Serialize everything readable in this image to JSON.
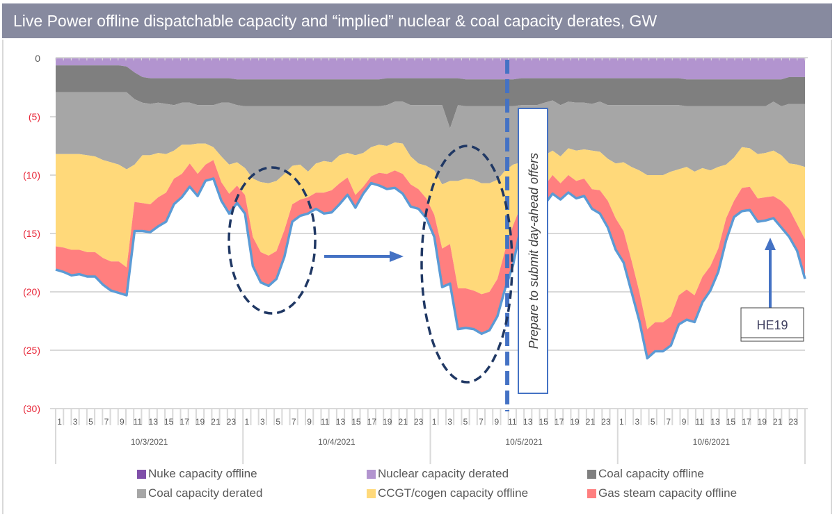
{
  "header": {
    "title": "Live Power offline dispatchable capacity and “implied” nuclear & coal capacity derates, GW"
  },
  "chart_data": {
    "type": "area",
    "stacked": true,
    "title": "Live Power offline dispatchable capacity and “implied” nuclear & coal capacity derates, GW",
    "xlabel": "",
    "ylabel": "GW",
    "ylim": [
      -30,
      0
    ],
    "yticks": [
      0,
      -5,
      -10,
      -15,
      -20,
      -25,
      -30
    ],
    "ytick_labels": [
      "0",
      "(5)",
      "(10)",
      "(15)",
      "(20)",
      "(25)",
      "(30)"
    ],
    "grid": true,
    "legend_position": "bottom",
    "hours_per_day": 24,
    "hour_tick_labels": [
      "1",
      "3",
      "5",
      "7",
      "9",
      "11",
      "13",
      "15",
      "17",
      "19",
      "21",
      "23"
    ],
    "days": [
      "10/3/2021",
      "10/4/2021",
      "10/5/2021",
      "10/6/2021"
    ],
    "series": [
      {
        "name": "Nuke capacity offline",
        "color": "#7f4fa9",
        "values": [
          0,
          0,
          0,
          0,
          0,
          0,
          0,
          0,
          0,
          0,
          0,
          0,
          0,
          0,
          0,
          0,
          0,
          0,
          0,
          0,
          0,
          0,
          0,
          0,
          0,
          0,
          0,
          0,
          0,
          0,
          0,
          0,
          0,
          0,
          0,
          0,
          0,
          0,
          0,
          0,
          0,
          0,
          0,
          0,
          0,
          0,
          0,
          0,
          0,
          0,
          0,
          0,
          0,
          0,
          0,
          0,
          0,
          0,
          0,
          0,
          0,
          0,
          0,
          0,
          0,
          0,
          0,
          0,
          0,
          0,
          0,
          0,
          0,
          0,
          0,
          0,
          0,
          0,
          0,
          0,
          0,
          0,
          0,
          0,
          0,
          0,
          0,
          0,
          0,
          0,
          0,
          0,
          0,
          0,
          0,
          0
        ]
      },
      {
        "name": "Nuclear capacity derated",
        "color": "#b294cf",
        "values": [
          0.6,
          0.6,
          0.6,
          0.6,
          0.6,
          0.6,
          0.6,
          0.6,
          0.6,
          0.7,
          1.2,
          1.6,
          1.7,
          1.7,
          1.7,
          1.7,
          1.7,
          1.7,
          1.7,
          1.7,
          1.7,
          1.7,
          1.7,
          1.8,
          1.8,
          1.8,
          1.8,
          1.8,
          1.8,
          1.8,
          1.8,
          1.8,
          1.8,
          1.8,
          1.8,
          1.8,
          1.8,
          1.8,
          1.8,
          1.8,
          1.8,
          1.8,
          1.7,
          1.7,
          1.7,
          1.7,
          1.7,
          1.7,
          1.7,
          1.7,
          1.7,
          1.7,
          1.8,
          1.8,
          1.8,
          1.8,
          1.8,
          1.8,
          1.8,
          1.7,
          1.7,
          1.7,
          1.7,
          1.7,
          1.7,
          1.7,
          1.7,
          1.7,
          1.7,
          1.7,
          1.7,
          1.7,
          1.7,
          1.7,
          1.7,
          1.7,
          1.7,
          1.7,
          1.7,
          1.7,
          1.8,
          1.8,
          1.8,
          1.8,
          1.8,
          1.8,
          1.8,
          1.8,
          1.8,
          1.8,
          1.8,
          1.8,
          1.8,
          1.6,
          1.6,
          1.6
        ]
      },
      {
        "name": "Coal capacity offline",
        "color": "#7f7f7f",
        "values": [
          2.3,
          2.3,
          2.3,
          2.3,
          2.3,
          2.3,
          2.3,
          2.3,
          2.3,
          2.2,
          2.3,
          2.2,
          2.2,
          2.1,
          2.2,
          2.3,
          2.1,
          2.1,
          2.3,
          2.3,
          2.3,
          2.1,
          2.1,
          2.2,
          2.3,
          2.3,
          2.3,
          2.3,
          2.3,
          2.3,
          2.3,
          2.3,
          2.3,
          2.3,
          2.3,
          2.3,
          2.3,
          2.3,
          2.3,
          2.3,
          2.3,
          2.3,
          2.3,
          2.0,
          2.0,
          2.3,
          2.3,
          2.3,
          2.3,
          2.3,
          4.3,
          2.3,
          2.3,
          2.3,
          2.3,
          2.3,
          2.3,
          2.3,
          2.3,
          2.3,
          2.3,
          2.3,
          2.1,
          1.9,
          2.3,
          2.0,
          2.1,
          2.1,
          2.2,
          2.0,
          2.3,
          2.3,
          2.3,
          2.3,
          2.3,
          2.3,
          2.3,
          2.3,
          2.3,
          2.3,
          2.3,
          2.3,
          2.3,
          2.3,
          2.3,
          2.3,
          2.3,
          2.3,
          2.3,
          2.3,
          2.3,
          1.9,
          2.3,
          2.3,
          2.3,
          2.3
        ]
      },
      {
        "name": "Coal capacity derated",
        "color": "#a6a6a6",
        "values": [
          5.3,
          5.3,
          5.3,
          5.3,
          5.4,
          5.5,
          5.8,
          6.0,
          6.2,
          6.6,
          5.6,
          4.5,
          4.4,
          4.3,
          4.3,
          3.9,
          3.6,
          3.6,
          3.3,
          3.3,
          3.6,
          4.6,
          5.3,
          4.9,
          5.3,
          6.2,
          6.5,
          6.6,
          6.4,
          5.8,
          5.1,
          5.0,
          5.6,
          4.9,
          4.7,
          4.8,
          4.2,
          4.0,
          4.2,
          4.0,
          3.5,
          3.3,
          3.5,
          3.5,
          3.6,
          4.4,
          5.0,
          5.2,
          5.6,
          6.8,
          4.5,
          6.5,
          6.2,
          6.3,
          6.6,
          6.6,
          6.3,
          5.5,
          5.0,
          4.9,
          4.9,
          4.9,
          4.5,
          4.3,
          4.4,
          4.0,
          4.1,
          4.0,
          4.0,
          4.3,
          4.6,
          5.0,
          4.9,
          5.3,
          5.6,
          6.0,
          6.0,
          6.0,
          5.7,
          5.5,
          5.2,
          5.6,
          5.3,
          5.5,
          5.2,
          5.0,
          4.4,
          3.5,
          3.6,
          4.1,
          4.0,
          4.2,
          4.2,
          5.1,
          5.2,
          5.4
        ]
      },
      {
        "name": "CCGT/cogen capacity offline",
        "color": "#ffd97a",
        "values": [
          7.9,
          8.0,
          8.2,
          8.2,
          8.3,
          8.2,
          8.4,
          8.5,
          8.3,
          8.4,
          3.2,
          4.1,
          4.2,
          3.8,
          3.3,
          2.4,
          2.5,
          1.6,
          2.6,
          1.8,
          1.1,
          2.2,
          2.5,
          2.0,
          2.3,
          5.0,
          6.0,
          6.2,
          6.0,
          4.8,
          3.3,
          3.0,
          2.2,
          2.5,
          2.7,
          2.4,
          2.4,
          2.1,
          3.4,
          2.9,
          2.5,
          2.4,
          2.4,
          2.4,
          2.6,
          2.4,
          2.2,
          2.8,
          3.8,
          5.5,
          5.4,
          9.2,
          9.4,
          9.5,
          9.5,
          9.3,
          8.5,
          6.8,
          5.2,
          3.7,
          2.5,
          2.3,
          2.6,
          2.1,
          2.3,
          2.3,
          2.6,
          2.5,
          3.3,
          3.3,
          3.6,
          4.7,
          5.9,
          8.0,
          10.4,
          13.2,
          12.6,
          12.6,
          12.4,
          10.8,
          10.5,
          10.6,
          9.3,
          8.2,
          7.0,
          4.6,
          3.7,
          3.5,
          3.3,
          3.8,
          3.8,
          3.9,
          3.9,
          3.9,
          5.1,
          6.2
        ]
      },
      {
        "name": "Gas steam capacity offline",
        "color": "#ff7f7f",
        "values": [
          1.9,
          2.0,
          2.1,
          2.0,
          2.0,
          2.0,
          2.2,
          2.4,
          2.6,
          2.3,
          2.4,
          2.3,
          2.3,
          2.4,
          2.4,
          2.1,
          1.9,
          1.9,
          1.8,
          1.3,
          1.5,
          1.5,
          1.6,
          1.4,
          1.5,
          2.4,
          2.5,
          2.5,
          2.3,
          2.2,
          1.4,
          1.3,
          1.3,
          1.3,
          1.7,
          1.8,
          1.7,
          1.4,
          1.0,
          0.5,
          0.5,
          1.0,
          1.2,
          1.4,
          1.6,
          1.8,
          1.6,
          1.6,
          1.8,
          3.2,
          3.3,
          3.4,
          3.3,
          3.2,
          3.3,
          3.2,
          3.1,
          3.2,
          3.3,
          1.6,
          1.6,
          1.6,
          1.5,
          1.5,
          1.3,
          1.4,
          1.4,
          1.4,
          1.6,
          1.9,
          2.2,
          2.6,
          2.6,
          2.6,
          2.4,
          2.4,
          2.4,
          2.4,
          2.4,
          2.4,
          2.5,
          2.2,
          2.1,
          2.0,
          1.9,
          1.8,
          1.3,
          1.9,
          1.9,
          1.9,
          1.9,
          1.8,
          2.2,
          2.3,
          2.2,
          3.3
        ]
      }
    ],
    "boundary_line": {
      "name": "Total offline (outline)",
      "color": "#5b9bd5"
    },
    "annotations": [
      {
        "type": "vline",
        "label": "Prepare to submit day-ahead offers",
        "color": "#4472c4",
        "at": {
          "day": "10/5/2021",
          "hour": 10
        }
      },
      {
        "type": "ellipse",
        "label": "",
        "color": "#203864",
        "around": {
          "day": "10/4/2021",
          "hours": [
            1,
            9
          ]
        }
      },
      {
        "type": "ellipse",
        "label": "",
        "color": "#203864",
        "around": {
          "day": "10/5/2021",
          "hours": [
            1,
            9
          ]
        }
      },
      {
        "type": "arrow",
        "label": "",
        "color": "#4472c4",
        "direction": "right"
      },
      {
        "type": "arrow",
        "label": "HE19",
        "color": "#4472c4",
        "direction": "up",
        "at": {
          "day": "10/6/2021",
          "hour": 19
        }
      }
    ]
  },
  "legend": {
    "items": [
      {
        "label": "Nuke capacity offline",
        "color": "#7f4fa9"
      },
      {
        "label": "Nuclear capacity derated",
        "color": "#b294cf"
      },
      {
        "label": "Coal capacity offline",
        "color": "#7f7f7f"
      },
      {
        "label": "Coal capacity derated",
        "color": "#a6a6a6"
      },
      {
        "label": "CCGT/cogen capacity offline",
        "color": "#ffd97a"
      },
      {
        "label": "Gas steam capacity offline",
        "color": "#ff7f7f"
      }
    ]
  },
  "colors": {
    "title_bar": "#878a9f",
    "ytick_zero": "#595959",
    "ytick_negative": "#e8283a",
    "grid": "#d9d9d9"
  }
}
